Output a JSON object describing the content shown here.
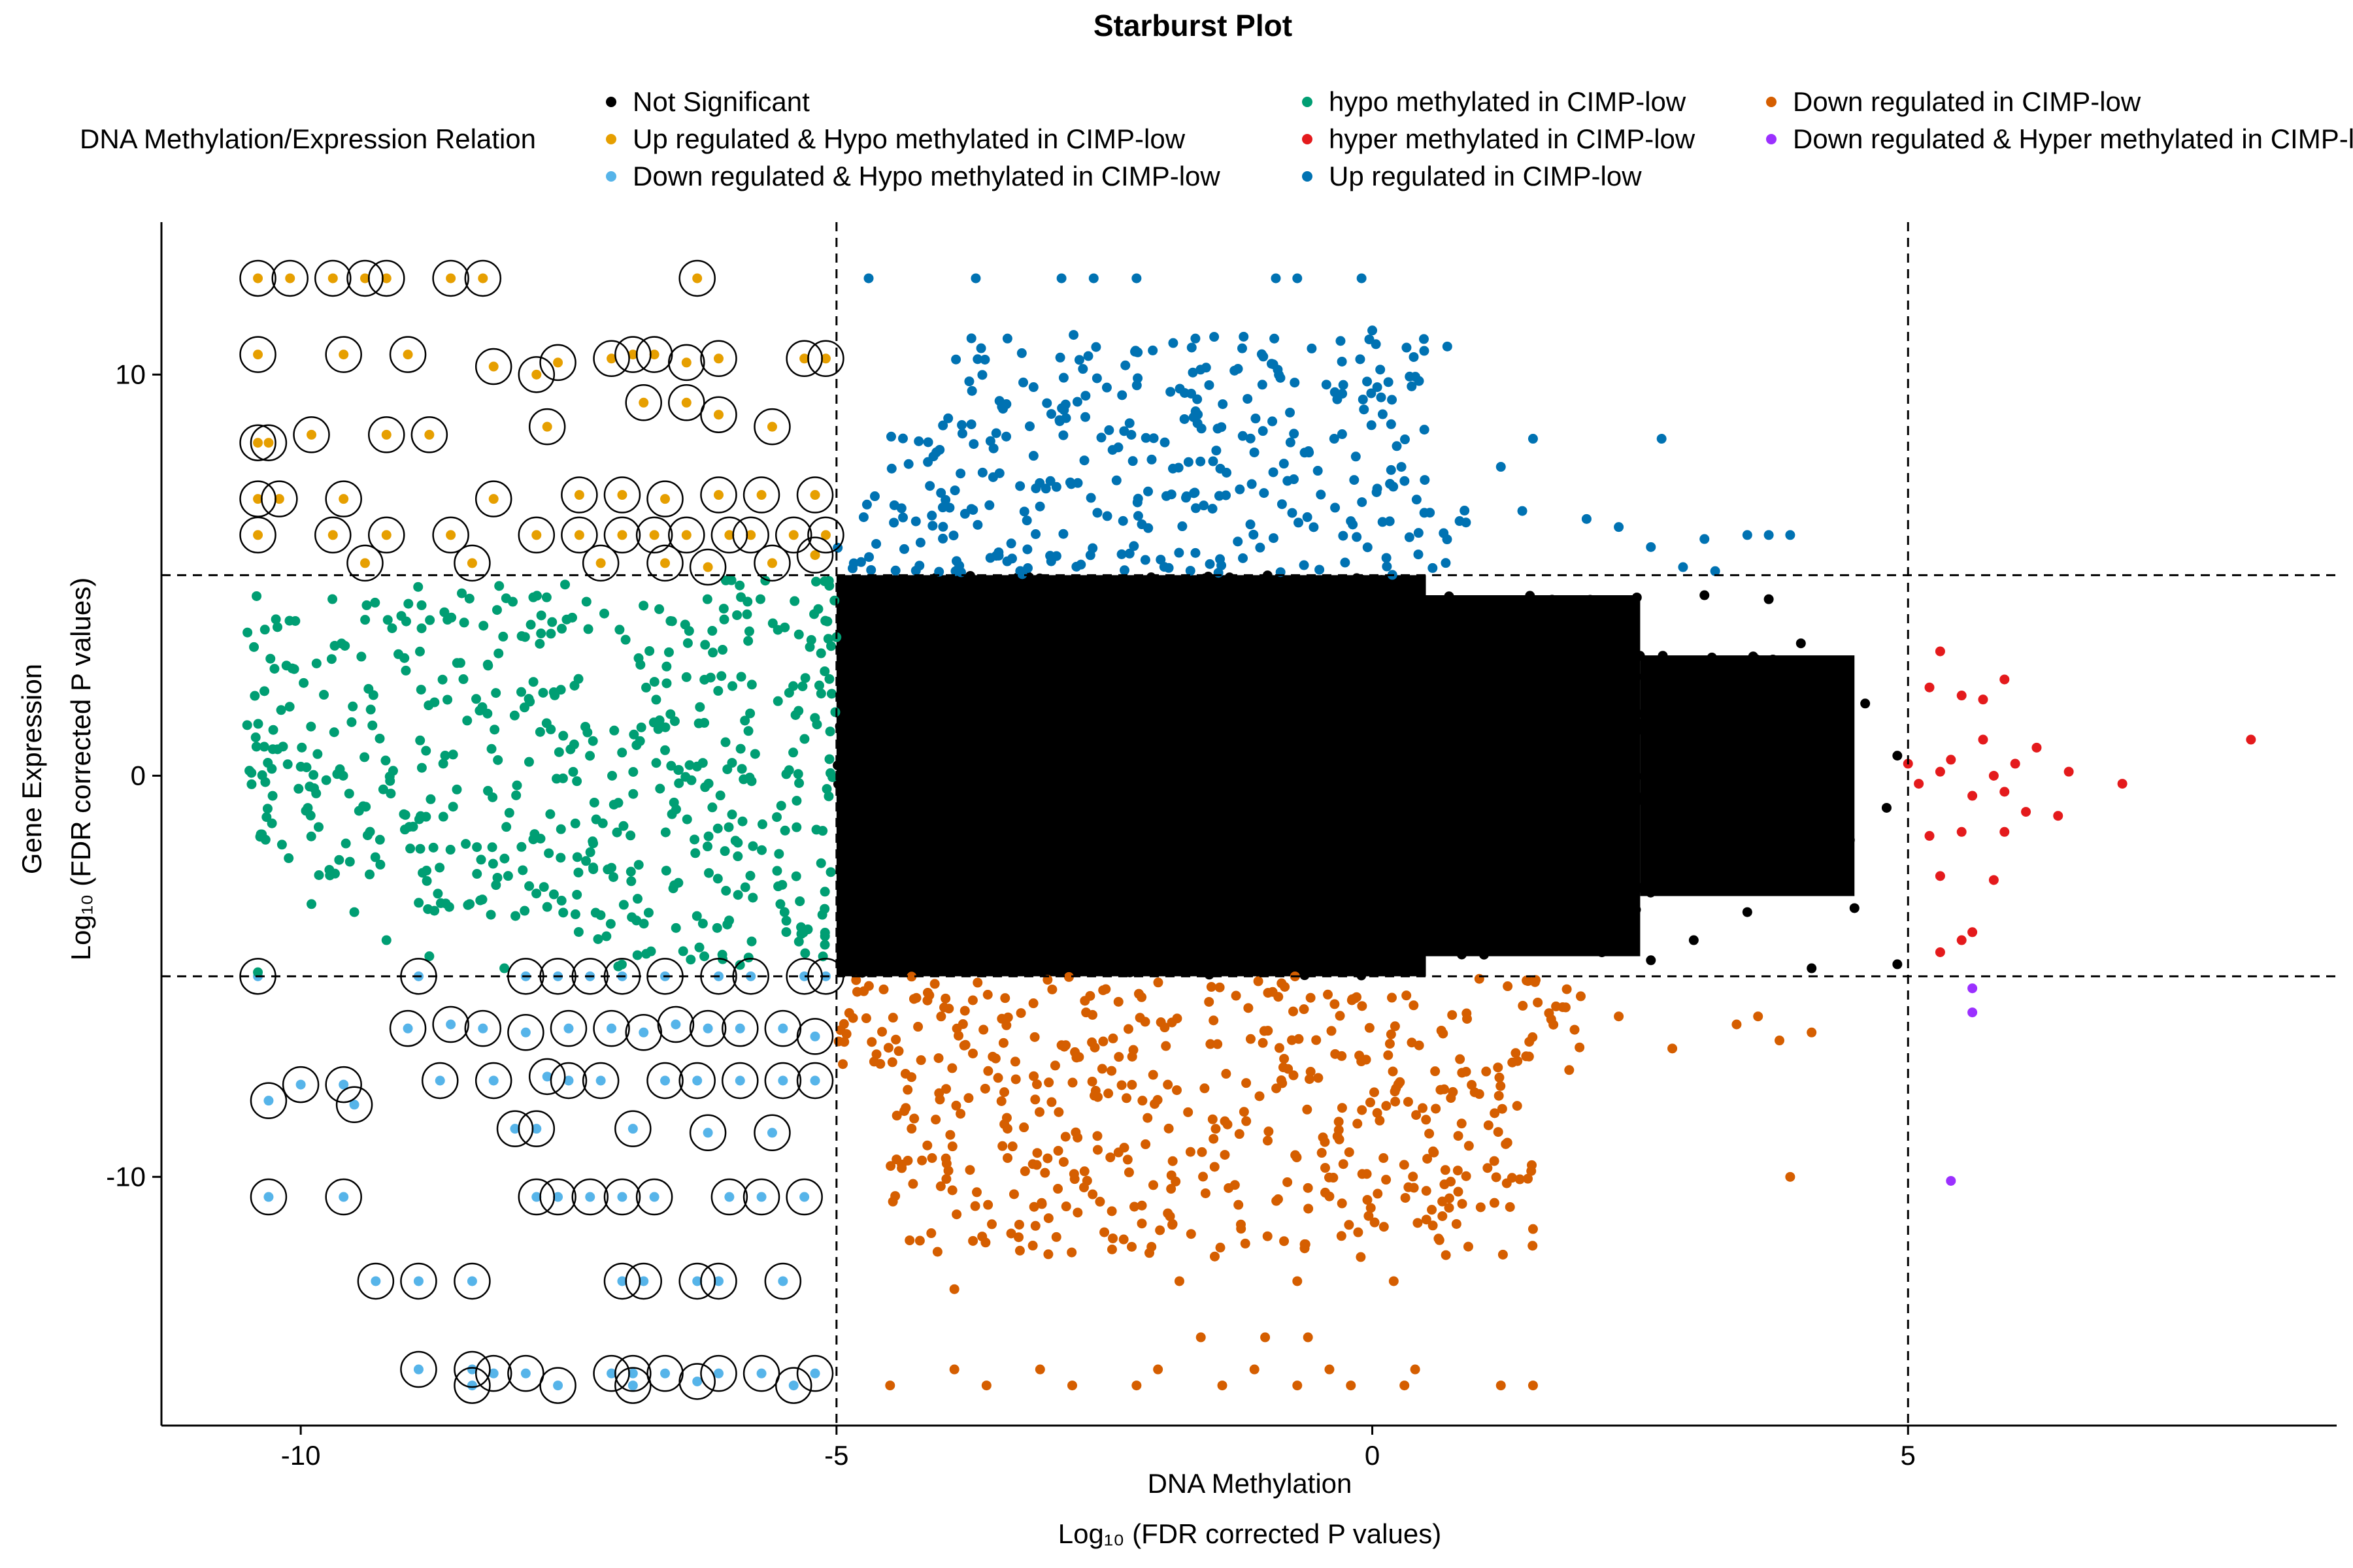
{
  "chart_data": {
    "type": "scatter",
    "title": "Starburst Plot",
    "xlabel_line1": "DNA Methylation",
    "xlabel_line2": "Log₁₀ (FDR corrected P values)",
    "ylabel_line1": "Gene Expression",
    "ylabel_line2": "Log₁₀ (FDR corrected P values)",
    "xlim": [
      -11.3,
      9.0
    ],
    "ylim": [
      -16.2,
      13.8
    ],
    "x_ticks": [
      -10,
      -5,
      0,
      5
    ],
    "x_tick_labels": [
      "-10",
      "-5",
      "0",
      "5"
    ],
    "y_ticks": [
      10,
      0,
      -10
    ],
    "y_tick_labels": [
      "10",
      "0",
      "-10"
    ],
    "thresholds": {
      "x": [
        -5,
        5
      ],
      "y": [
        -5,
        5
      ]
    },
    "grid": false,
    "legend": {
      "title": "DNA Methylation/Expression Relation",
      "position": "top",
      "entries": [
        {
          "label": "Not Significant",
          "color": "#000000"
        },
        {
          "label": "Up regulated & Hypo methylated in CIMP-low",
          "color": "#E69F00"
        },
        {
          "label": "Down regulated & Hypo methylated in CIMP-low",
          "color": "#56B4E9"
        },
        {
          "label": "hypo methylated in CIMP-low",
          "color": "#009E73"
        },
        {
          "label": "hyper methylated in CIMP-low",
          "color": "#E41A1C"
        },
        {
          "label": "Up regulated in CIMP-low",
          "color": "#0072B2"
        },
        {
          "label": "Down regulated in CIMP-low",
          "color": "#D55E00"
        },
        {
          "label": "Down regulated & Hyper methylated in CIMP-low",
          "color": "#9B30FF"
        }
      ]
    },
    "series": [
      {
        "name": "Not Significant",
        "color": "#000000",
        "regions": [
          {
            "x": [
              -5,
              0.5
            ],
            "y": [
              -5,
              5
            ]
          },
          {
            "x": [
              0.5,
              2.5
            ],
            "y": [
              -4.5,
              4.5
            ]
          },
          {
            "x": [
              2.5,
              4.5
            ],
            "y": [
              -3.0,
              3.0
            ]
          }
        ],
        "points": [
          [
            4.2,
            2.4
          ],
          [
            4.6,
            1.8
          ],
          [
            4.9,
            0.5
          ],
          [
            4.8,
            -0.8
          ],
          [
            4.4,
            -2.2
          ],
          [
            3.9,
            -2.6
          ],
          [
            4.5,
            -3.3
          ],
          [
            4.1,
            -4.8
          ],
          [
            4.9,
            -4.7
          ],
          [
            3.1,
            4.5
          ],
          [
            3.7,
            4.4
          ],
          [
            4.0,
            3.3
          ],
          [
            3.5,
            -3.4
          ],
          [
            3.0,
            -4.1
          ],
          [
            2.6,
            -4.6
          ]
        ]
      },
      {
        "name": "Up regulated & Hypo methylated in CIMP-low",
        "color": "#E69F00",
        "circled": true,
        "points": [
          [
            -10.4,
            12.4
          ],
          [
            -10.1,
            12.4
          ],
          [
            -9.7,
            12.4
          ],
          [
            -9.4,
            12.4
          ],
          [
            -9.2,
            12.4
          ],
          [
            -8.6,
            12.4
          ],
          [
            -8.3,
            12.4
          ],
          [
            -6.3,
            12.4
          ],
          [
            -10.4,
            10.5
          ],
          [
            -9.6,
            10.5
          ],
          [
            -9.0,
            10.5
          ],
          [
            -8.2,
            10.2
          ],
          [
            -7.8,
            10.0
          ],
          [
            -7.6,
            10.3
          ],
          [
            -7.1,
            10.4
          ],
          [
            -6.9,
            10.5
          ],
          [
            -6.7,
            10.5
          ],
          [
            -6.4,
            10.3
          ],
          [
            -6.1,
            10.4
          ],
          [
            -5.3,
            10.4
          ],
          [
            -5.1,
            10.4
          ],
          [
            -10.4,
            8.3
          ],
          [
            -10.3,
            8.3
          ],
          [
            -9.9,
            8.5
          ],
          [
            -9.2,
            8.5
          ],
          [
            -8.8,
            8.5
          ],
          [
            -7.7,
            8.7
          ],
          [
            -6.8,
            9.3
          ],
          [
            -6.4,
            9.3
          ],
          [
            -6.1,
            9.0
          ],
          [
            -5.6,
            8.7
          ],
          [
            -10.4,
            6.9
          ],
          [
            -10.2,
            6.9
          ],
          [
            -9.6,
            6.9
          ],
          [
            -8.2,
            6.9
          ],
          [
            -7.4,
            7.0
          ],
          [
            -7.0,
            7.0
          ],
          [
            -6.6,
            6.9
          ],
          [
            -6.1,
            7.0
          ],
          [
            -5.7,
            7.0
          ],
          [
            -5.2,
            7.0
          ],
          [
            -10.4,
            6.0
          ],
          [
            -9.7,
            6.0
          ],
          [
            -9.2,
            6.0
          ],
          [
            -8.6,
            6.0
          ],
          [
            -7.8,
            6.0
          ],
          [
            -7.4,
            6.0
          ],
          [
            -7.0,
            6.0
          ],
          [
            -6.7,
            6.0
          ],
          [
            -6.4,
            6.0
          ],
          [
            -6.0,
            6.0
          ],
          [
            -5.8,
            6.0
          ],
          [
            -5.4,
            6.0
          ],
          [
            -5.1,
            6.0
          ],
          [
            -9.4,
            5.3
          ],
          [
            -8.4,
            5.3
          ],
          [
            -7.2,
            5.3
          ],
          [
            -6.6,
            5.3
          ],
          [
            -6.2,
            5.2
          ],
          [
            -5.6,
            5.3
          ],
          [
            -5.2,
            5.5
          ]
        ]
      },
      {
        "name": "Down regulated & Hypo methylated in CIMP-low",
        "color": "#56B4E9",
        "circled": true,
        "points": [
          [
            -10.4,
            -5.0
          ],
          [
            -8.9,
            -5.0
          ],
          [
            -7.9,
            -5.0
          ],
          [
            -7.6,
            -5.0
          ],
          [
            -7.3,
            -5.0
          ],
          [
            -7.0,
            -5.0
          ],
          [
            -6.6,
            -5.0
          ],
          [
            -6.1,
            -5.0
          ],
          [
            -5.8,
            -5.0
          ],
          [
            -5.3,
            -5.0
          ],
          [
            -5.1,
            -5.0
          ],
          [
            -9.0,
            -6.3
          ],
          [
            -8.6,
            -6.2
          ],
          [
            -8.3,
            -6.3
          ],
          [
            -7.9,
            -6.4
          ],
          [
            -7.5,
            -6.3
          ],
          [
            -7.1,
            -6.3
          ],
          [
            -6.8,
            -6.4
          ],
          [
            -6.5,
            -6.2
          ],
          [
            -6.2,
            -6.3
          ],
          [
            -5.9,
            -6.3
          ],
          [
            -5.5,
            -6.3
          ],
          [
            -5.2,
            -6.5
          ],
          [
            -10.3,
            -8.1
          ],
          [
            -10.0,
            -7.7
          ],
          [
            -9.6,
            -7.7
          ],
          [
            -9.5,
            -8.2
          ],
          [
            -8.7,
            -7.6
          ],
          [
            -8.2,
            -7.6
          ],
          [
            -7.7,
            -7.5
          ],
          [
            -7.5,
            -7.6
          ],
          [
            -7.2,
            -7.6
          ],
          [
            -6.6,
            -7.6
          ],
          [
            -6.3,
            -7.6
          ],
          [
            -5.9,
            -7.6
          ],
          [
            -5.5,
            -7.6
          ],
          [
            -5.2,
            -7.6
          ],
          [
            -8.0,
            -8.8
          ],
          [
            -7.8,
            -8.8
          ],
          [
            -6.9,
            -8.8
          ],
          [
            -6.2,
            -8.9
          ],
          [
            -5.6,
            -8.9
          ],
          [
            -10.3,
            -10.5
          ],
          [
            -9.6,
            -10.5
          ],
          [
            -7.8,
            -10.5
          ],
          [
            -7.6,
            -10.5
          ],
          [
            -7.3,
            -10.5
          ],
          [
            -7.0,
            -10.5
          ],
          [
            -6.7,
            -10.5
          ],
          [
            -6.0,
            -10.5
          ],
          [
            -5.7,
            -10.5
          ],
          [
            -5.3,
            -10.5
          ],
          [
            -9.3,
            -12.6
          ],
          [
            -8.9,
            -12.6
          ],
          [
            -8.4,
            -12.6
          ],
          [
            -7.0,
            -12.6
          ],
          [
            -6.8,
            -12.6
          ],
          [
            -6.3,
            -12.6
          ],
          [
            -6.1,
            -12.6
          ],
          [
            -5.5,
            -12.6
          ],
          [
            -8.9,
            -14.8
          ],
          [
            -8.4,
            -14.8
          ],
          [
            -8.2,
            -14.9
          ],
          [
            -7.9,
            -14.9
          ],
          [
            -7.1,
            -14.9
          ],
          [
            -6.9,
            -14.9
          ],
          [
            -6.6,
            -14.9
          ],
          [
            -6.1,
            -14.9
          ],
          [
            -5.7,
            -14.9
          ],
          [
            -5.2,
            -14.9
          ],
          [
            -8.4,
            -15.2
          ],
          [
            -7.6,
            -15.2
          ],
          [
            -6.9,
            -15.2
          ],
          [
            -6.3,
            -15.1
          ],
          [
            -5.4,
            -15.2
          ]
        ]
      },
      {
        "name": "hypo methylated in CIMP-low",
        "color": "#009E73",
        "regions": [
          {
            "x": [
              -10.5,
              -9.0
            ],
            "y": [
              -2.5,
              4.5
            ]
          },
          {
            "x": [
              -9.0,
              -7.5
            ],
            "y": [
              -3.5,
              4.8
            ]
          },
          {
            "x": [
              -7.5,
              -5.0
            ],
            "y": [
              -4.8,
              4.9
            ]
          }
        ],
        "points": [
          [
            -10.4,
            -4.9
          ],
          [
            -9.5,
            -3.4
          ],
          [
            -9.9,
            -3.2
          ],
          [
            -9.2,
            -4.1
          ],
          [
            -8.8,
            -4.5
          ],
          [
            -8.1,
            -4.8
          ]
        ]
      },
      {
        "name": "hyper methylated in CIMP-low",
        "color": "#E41A1C",
        "points": [
          [
            5.0,
            0.3
          ],
          [
            5.1,
            -0.2
          ],
          [
            5.3,
            0.1
          ],
          [
            5.2,
            -1.5
          ],
          [
            5.5,
            -1.4
          ],
          [
            5.4,
            0.4
          ],
          [
            5.6,
            -0.5
          ],
          [
            5.7,
            0.9
          ],
          [
            5.8,
            0.0
          ],
          [
            5.9,
            -0.4
          ],
          [
            6.0,
            0.3
          ],
          [
            6.1,
            -0.9
          ],
          [
            5.7,
            1.9
          ],
          [
            5.9,
            2.4
          ],
          [
            5.5,
            2.0
          ],
          [
            5.3,
            3.1
          ],
          [
            5.2,
            2.2
          ],
          [
            6.2,
            0.7
          ],
          [
            6.5,
            0.1
          ],
          [
            6.4,
            -1.0
          ],
          [
            5.9,
            -1.4
          ],
          [
            5.3,
            -2.5
          ],
          [
            5.5,
            -4.1
          ],
          [
            5.6,
            -3.9
          ],
          [
            5.8,
            -2.6
          ],
          [
            7.0,
            -0.2
          ],
          [
            8.2,
            0.9
          ],
          [
            5.3,
            -4.4
          ]
        ]
      },
      {
        "name": "Up regulated in CIMP-low",
        "color": "#0072B2",
        "regions": [
          {
            "x": [
              -5.0,
              1.0
            ],
            "y": [
              5.0,
              7.0
            ]
          },
          {
            "x": [
              -4.5,
              0.5
            ],
            "y": [
              7.0,
              9.0
            ]
          },
          {
            "x": [
              -4.0,
              0.5
            ],
            "y": [
              9.0,
              11.0
            ]
          }
        ],
        "points": [
          [
            -4.7,
            12.4
          ],
          [
            -3.7,
            12.4
          ],
          [
            -2.9,
            12.4
          ],
          [
            -2.6,
            12.4
          ],
          [
            -2.2,
            12.4
          ],
          [
            -0.9,
            12.4
          ],
          [
            -0.7,
            12.4
          ],
          [
            -0.1,
            12.4
          ],
          [
            0.0,
            11.1
          ],
          [
            0.7,
            10.7
          ],
          [
            1.2,
            7.7
          ],
          [
            1.5,
            8.4
          ],
          [
            2.7,
            8.4
          ],
          [
            1.4,
            6.6
          ],
          [
            2.0,
            6.4
          ],
          [
            2.3,
            6.2
          ],
          [
            2.6,
            5.7
          ],
          [
            3.1,
            5.9
          ],
          [
            3.5,
            6.0
          ],
          [
            3.7,
            6.0
          ],
          [
            3.9,
            6.0
          ],
          [
            2.9,
            5.2
          ],
          [
            3.2,
            5.1
          ]
        ]
      },
      {
        "name": "Down regulated in CIMP-low",
        "color": "#D55E00",
        "regions": [
          {
            "x": [
              -5.0,
              2.0
            ],
            "y": [
              -7.5,
              -5.0
            ]
          },
          {
            "x": [
              -4.5,
              1.5
            ],
            "y": [
              -12.0,
              -7.5
            ]
          }
        ],
        "points": [
          [
            -4.5,
            -15.2
          ],
          [
            -3.6,
            -15.2
          ],
          [
            -2.8,
            -15.2
          ],
          [
            -2.2,
            -15.2
          ],
          [
            -1.4,
            -15.2
          ],
          [
            -0.7,
            -15.2
          ],
          [
            -0.2,
            -15.2
          ],
          [
            0.3,
            -15.2
          ],
          [
            1.2,
            -15.2
          ],
          [
            1.5,
            -15.2
          ],
          [
            -3.9,
            -14.8
          ],
          [
            -3.1,
            -14.8
          ],
          [
            -2.0,
            -14.8
          ],
          [
            -1.1,
            -14.8
          ],
          [
            -0.4,
            -14.8
          ],
          [
            0.4,
            -14.8
          ],
          [
            -1.6,
            -14.0
          ],
          [
            -1.0,
            -14.0
          ],
          [
            -0.6,
            -14.0
          ],
          [
            -3.9,
            -12.8
          ],
          [
            -1.8,
            -12.6
          ],
          [
            -0.7,
            -12.6
          ],
          [
            0.2,
            -12.6
          ],
          [
            1.5,
            -11.3
          ],
          [
            2.3,
            -6.0
          ],
          [
            2.8,
            -6.8
          ],
          [
            3.4,
            -6.2
          ],
          [
            3.6,
            -6.0
          ],
          [
            3.8,
            -6.6
          ],
          [
            4.1,
            -6.4
          ],
          [
            3.9,
            -10.0
          ]
        ]
      },
      {
        "name": "Down regulated & Hyper methylated in CIMP-low",
        "color": "#9B30FF",
        "points": [
          [
            5.6,
            -5.3
          ],
          [
            5.6,
            -5.9
          ],
          [
            5.4,
            -10.1
          ]
        ]
      }
    ]
  }
}
